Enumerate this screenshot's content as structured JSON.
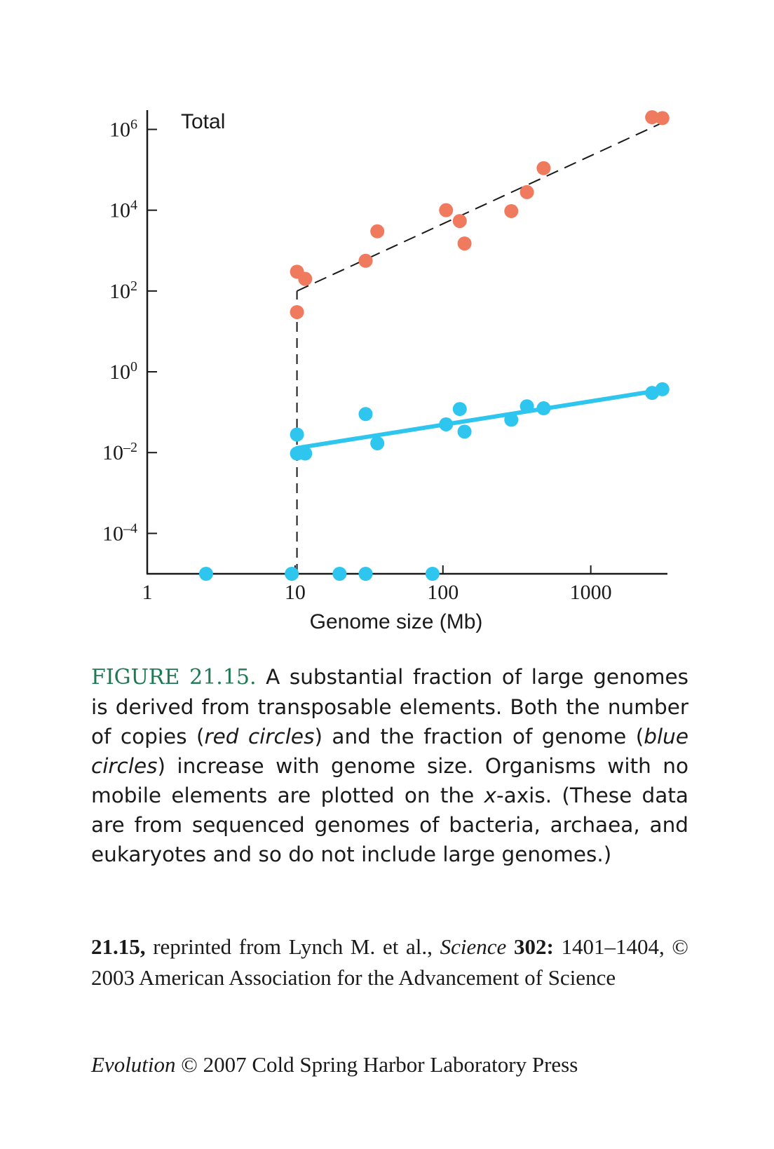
{
  "chart_data": {
    "type": "scatter",
    "x_scale": "log",
    "y_scale": "log",
    "xlim": [
      1,
      3300
    ],
    "ylim": [
      1e-05,
      3000000
    ],
    "x_ticks": [
      1,
      10,
      100,
      1000
    ],
    "x_tick_labels": [
      "1",
      "10",
      "100",
      "1000"
    ],
    "y_ticks": [
      0.0001,
      0.01,
      1,
      100,
      10000,
      1000000
    ],
    "y_tick_base": [
      "10",
      "10",
      "10",
      "10",
      "10",
      "10"
    ],
    "y_tick_exp": [
      "–4",
      "–2",
      "0",
      "2",
      "4",
      "6"
    ],
    "xlabel": "Genome size (Mb)",
    "annotation": "Total",
    "colors": {
      "red": "#f07a5e",
      "blue": "#2ec6ee",
      "axis": "#1a1a1a"
    },
    "series": [
      {
        "color_key": "red",
        "points": [
          [
            10.3,
            300
          ],
          [
            11.7,
            200
          ],
          [
            10.3,
            30
          ],
          [
            30,
            560
          ],
          [
            36,
            3000
          ],
          [
            105,
            10000
          ],
          [
            130,
            5400
          ],
          [
            140,
            1500
          ],
          [
            290,
            9500
          ],
          [
            370,
            28000
          ],
          [
            480,
            110000
          ],
          [
            2600,
            2000000
          ],
          [
            3050,
            1900000
          ]
        ],
        "fit": [
          [
            10.3,
            100
          ],
          [
            3100,
            1500000
          ]
        ],
        "fit_style": "dashed"
      },
      {
        "color_key": "blue",
        "points": [
          [
            10.3,
            0.028
          ],
          [
            10.3,
            0.0095
          ],
          [
            11.7,
            0.0095
          ],
          [
            30,
            0.09
          ],
          [
            36,
            0.017
          ],
          [
            105,
            0.05
          ],
          [
            130,
            0.12
          ],
          [
            140,
            0.033
          ],
          [
            290,
            0.065
          ],
          [
            370,
            0.14
          ],
          [
            480,
            0.125
          ],
          [
            2600,
            0.3
          ],
          [
            3050,
            0.37
          ]
        ],
        "fit": [
          [
            10.3,
            0.013
          ],
          [
            3100,
            0.36
          ]
        ],
        "fit_style": "solid"
      },
      {
        "color_key": "blue",
        "on_x_axis": true,
        "x": [
          2.5,
          9.5,
          20,
          30,
          85
        ]
      }
    ],
    "vertical_dashed_x": 10.3
  },
  "caption": {
    "label": "FIGURE 21.15.",
    "t1": " A substantial fraction of large genomes is derived from transposable elements. Both the num­ber of copies (",
    "red": "red circles",
    "t2": ") and the fraction of genome (",
    "blue": "blue circles",
    "t3": ") increase with genome size. Organisms with no mobile elements are plotted on the ",
    "xaxis_var": "x",
    "t4": "-axis. (These data are from sequenced genomes of bacteria, archaea, and eukaryotes and so do not include large genomes.)"
  },
  "credit": {
    "num": "21.15,",
    "t1": " reprinted from Lynch M. et al., ",
    "journal": "Science",
    "vol": " 302:",
    "t2": " 1401–1404, © 2003 American Association for the Advancement of Sci­ence"
  },
  "footer": {
    "book": "Evolution",
    "rest": " © 2007 Cold Spring Harbor Laboratory Press"
  }
}
